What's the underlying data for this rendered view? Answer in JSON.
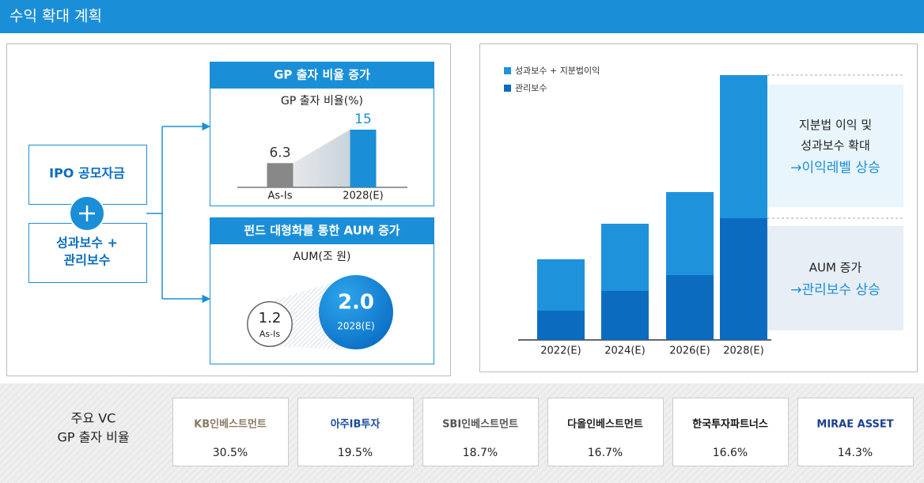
{
  "header": {
    "title": "수익 확대 계획"
  },
  "left": {
    "sources": [
      [
        "IPO 공모자금"
      ],
      [
        "성과보수 +",
        "관리보수"
      ]
    ],
    "gp_panel": {
      "title": "GP 출자 비율 증가",
      "subtitle": "GP 출자 비율(%)",
      "categories": [
        "As-Is",
        "2028(E)"
      ],
      "values": [
        6.3,
        15
      ]
    },
    "aum_panel": {
      "title": "펀드 대형화를 통한 AUM 증가",
      "subtitle": "AUM(조 원)",
      "categories": [
        "As-Is",
        "2028(E)"
      ],
      "values": [
        1.2,
        2.0
      ],
      "value_labels": [
        "1.2",
        "2.0"
      ]
    }
  },
  "chart_data": {
    "type": "bar",
    "stacked": true,
    "categories": [
      "2022(E)",
      "2024(E)",
      "2026(E)",
      "2028(E)"
    ],
    "series": [
      {
        "name": "성과보수 + 지분법이익",
        "color": "#1e93dc",
        "values": [
          65,
          85,
          105,
          181
        ]
      },
      {
        "name": "관리보수",
        "color": "#0b6cbf",
        "values": [
          37,
          62,
          82,
          154
        ]
      }
    ],
    "annotations": [
      {
        "lines": [
          "지분법 이익 및",
          "성과보수 확대"
        ],
        "highlight": "→이익레벨 상승"
      },
      {
        "lines": [
          "AUM 증가"
        ],
        "highlight": "→관리보수 상승"
      }
    ]
  },
  "vc": {
    "title": [
      "주요 VC",
      "GP 출자 비율"
    ],
    "companies": [
      {
        "name": "KB인베스트먼트",
        "value": 30.5,
        "label": "30.5%"
      },
      {
        "name": "아주IB투자",
        "value": 19.5,
        "label": "19.5%"
      },
      {
        "name": "SBI인베스트먼트",
        "value": 18.7,
        "label": "18.7%"
      },
      {
        "name": "다올인베스트먼트",
        "value": 16.7,
        "label": "16.7%"
      },
      {
        "name": "한국투자파트너스",
        "value": 16.6,
        "label": "16.6%"
      },
      {
        "name": "MIRAE ASSET",
        "value": 14.3,
        "label": "14.3%"
      }
    ]
  }
}
